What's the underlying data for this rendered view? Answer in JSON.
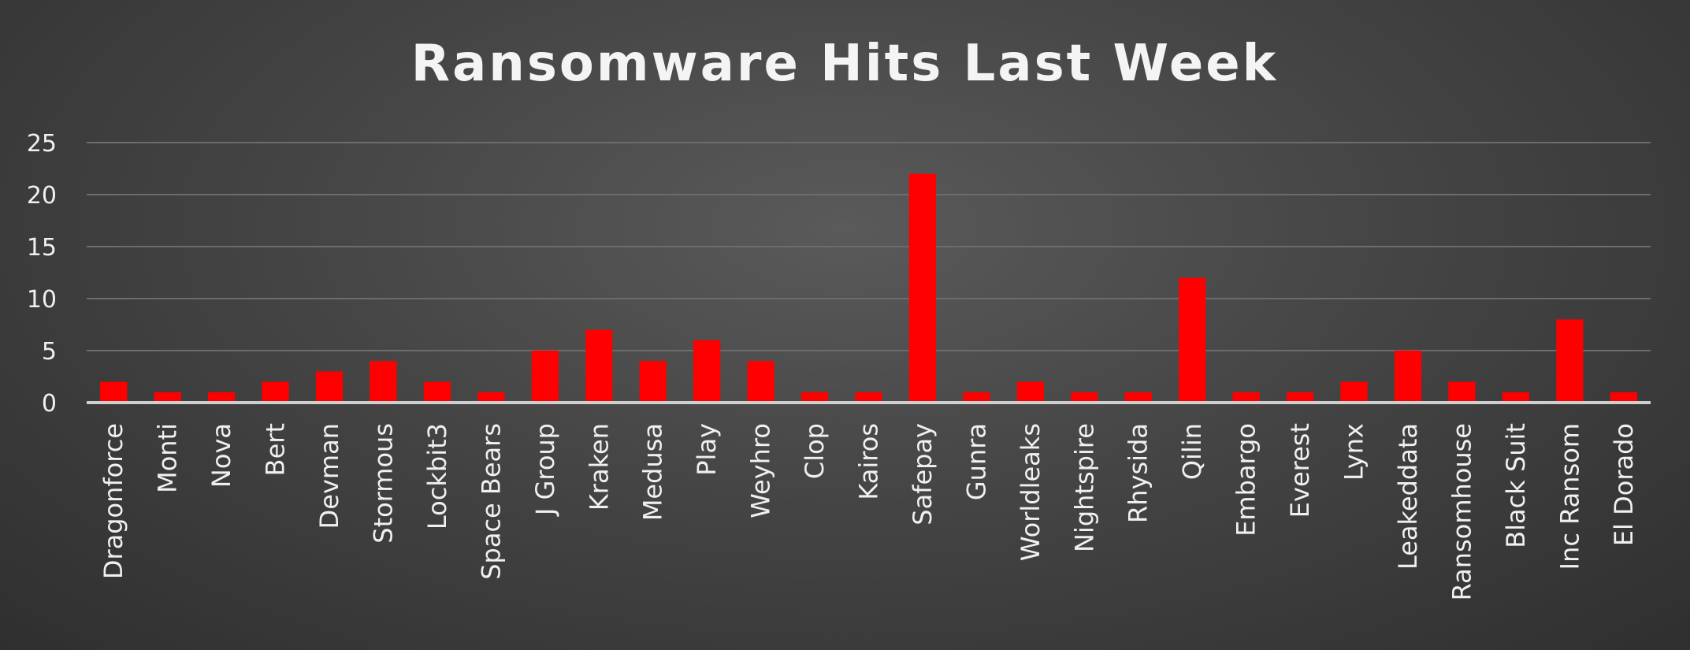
{
  "chart_data": {
    "type": "bar",
    "title": "Ransomware Hits Last Week",
    "xlabel": "",
    "ylabel": "",
    "ylim": [
      0,
      25
    ],
    "yticks": [
      0,
      5,
      10,
      15,
      20,
      25
    ],
    "grid": true,
    "legend": "none",
    "bar_color": "#ff0000",
    "categories": [
      "Dragonforce",
      "Monti",
      "Nova",
      "Bert",
      "Devman",
      "Stormous",
      "Lockbit3",
      "Space Bears",
      "J Group",
      "Kraken",
      "Medusa",
      "Play",
      "Weyhro",
      "Clop",
      "Kairos",
      "Safepay",
      "Gunra",
      "Worldleaks",
      "Nightspire",
      "Rhysida",
      "Qilin",
      "Embargo",
      "Everest",
      "Lynx",
      "Leakeddata",
      "Ransomhouse",
      "Black Suit",
      "Inc Ransom",
      "El Dorado"
    ],
    "values": [
      2,
      1,
      1,
      2,
      3,
      4,
      2,
      1,
      5,
      7,
      4,
      6,
      4,
      1,
      1,
      22,
      1,
      2,
      1,
      1,
      12,
      1,
      1,
      2,
      5,
      2,
      1,
      8,
      1
    ]
  }
}
